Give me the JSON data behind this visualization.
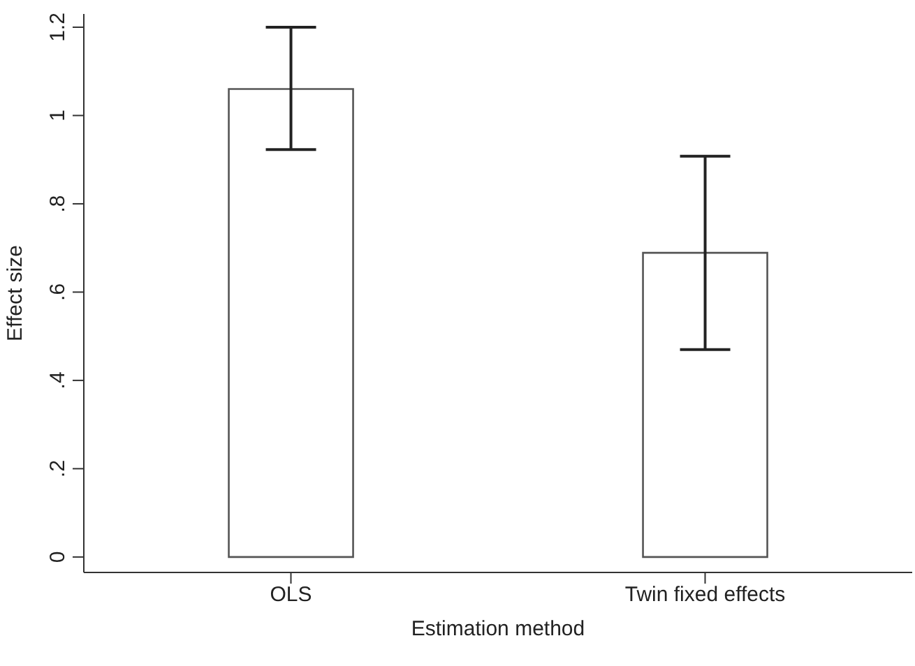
{
  "chart_data": {
    "type": "bar",
    "xlabel": "Estimation method",
    "ylabel": "Effect size",
    "categories": [
      "OLS",
      "Twin fixed effects"
    ],
    "values": [
      1.06,
      0.689
    ],
    "errors": [
      [
        0.923,
        1.2
      ],
      [
        0.47,
        0.908
      ]
    ],
    "color": "#ffffff",
    "ylim": [
      -0.035,
      1.23
    ],
    "yticks": [
      0,
      {
        "value": 0.2,
        "label": ".2"
      },
      {
        "value": 0.4,
        "label": ".4"
      },
      {
        "value": 0.6,
        "label": ".6"
      },
      {
        "value": 0.8,
        "label": ".8"
      },
      1,
      1.2
    ],
    "grid": false
  }
}
